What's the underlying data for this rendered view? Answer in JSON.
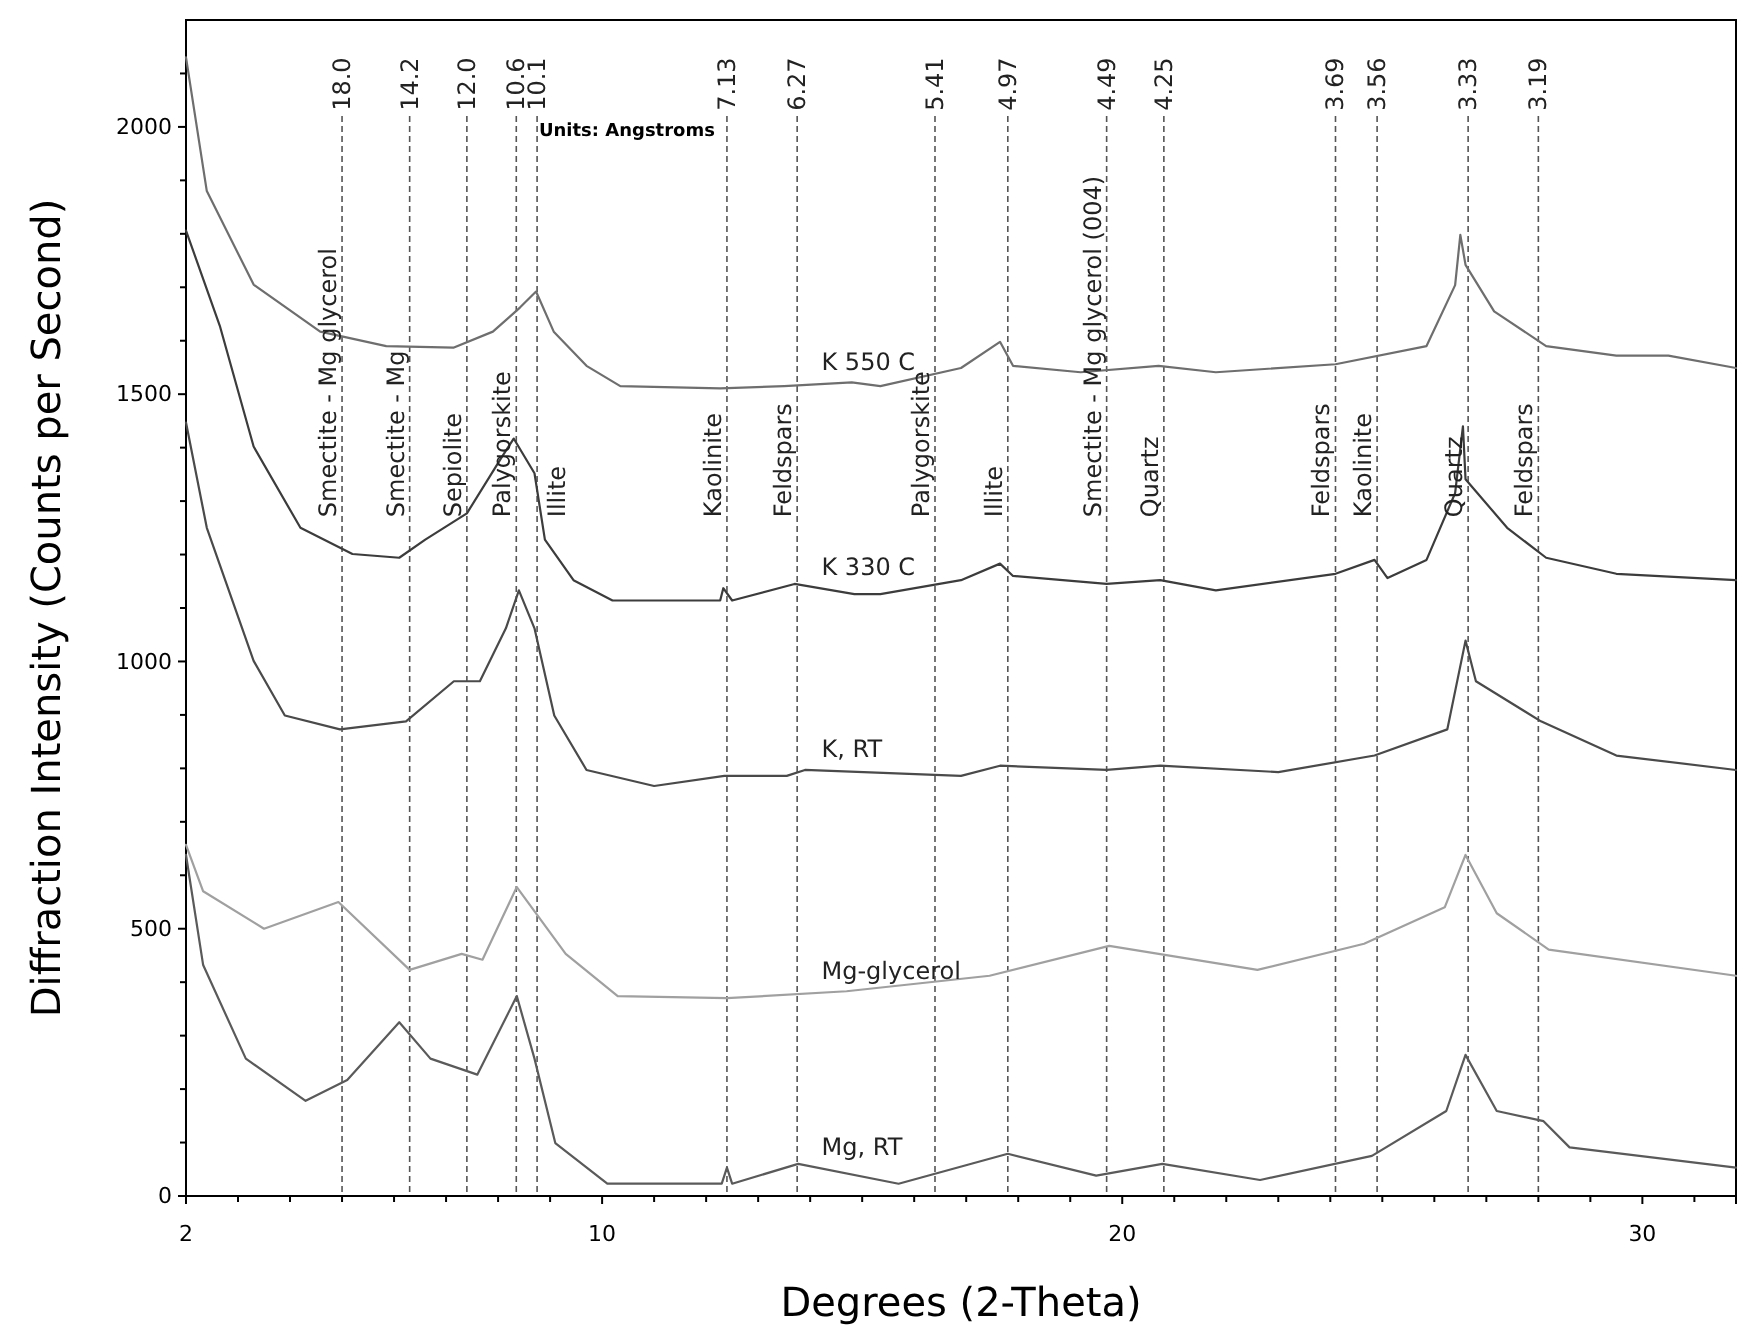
{
  "chart_data": {
    "type": "line",
    "xlabel": "Degrees (2-Theta)",
    "ylabel": "Diffraction Intensity (Counts per Second)",
    "xlim": [
      2,
      31.8
    ],
    "ylim": [
      0,
      2200
    ],
    "xticks": [
      2,
      {
        "value": 3,
        "label": null
      },
      {
        "value": 4,
        "label": null
      },
      {
        "value": 5,
        "label": null
      },
      {
        "value": 6,
        "label": null
      },
      {
        "value": 7,
        "label": null
      },
      {
        "value": 8,
        "label": null
      },
      {
        "value": 9,
        "label": null
      },
      10,
      {
        "value": 11,
        "label": null
      },
      {
        "value": 12,
        "label": null
      },
      {
        "value": 13,
        "label": null
      },
      {
        "value": 14,
        "label": null
      },
      {
        "value": 15,
        "label": null
      },
      {
        "value": 16,
        "label": null
      },
      {
        "value": 17,
        "label": null
      },
      {
        "value": 18,
        "label": null
      },
      {
        "value": 19,
        "label": null
      },
      20,
      {
        "value": 21,
        "label": null
      },
      {
        "value": 22,
        "label": null
      },
      {
        "value": 23,
        "label": null
      },
      {
        "value": 24,
        "label": null
      },
      {
        "value": 25,
        "label": null
      },
      {
        "value": 26,
        "label": null
      },
      {
        "value": 27,
        "label": null
      },
      {
        "value": 28,
        "label": null
      },
      {
        "value": 29,
        "label": null
      },
      30,
      {
        "value": 31,
        "label": null
      }
    ],
    "yticks": [
      0,
      {
        "value": 100,
        "label": null
      },
      {
        "value": 200,
        "label": null
      },
      {
        "value": 300,
        "label": null
      },
      {
        "value": 400,
        "label": null
      },
      500,
      {
        "value": 600,
        "label": null
      },
      {
        "value": 700,
        "label": null
      },
      {
        "value": 800,
        "label": null
      },
      {
        "value": 900,
        "label": null
      },
      1000,
      {
        "value": 1100,
        "label": null
      },
      {
        "value": 1200,
        "label": null
      },
      {
        "value": 1300,
        "label": null
      },
      {
        "value": 1400,
        "label": null
      },
      1500,
      {
        "value": 1600,
        "label": null
      },
      {
        "value": 1700,
        "label": null
      },
      {
        "value": 1800,
        "label": null
      },
      {
        "value": 1900,
        "label": null
      },
      2000,
      {
        "value": 2100,
        "label": null
      }
    ],
    "grid": false,
    "legend": false,
    "marker": "none",
    "line_style": "solid",
    "series": [
      {
        "name": "K 550 C",
        "color": "#6e6e6e",
        "x": [
          2.0,
          2.4,
          3.3,
          4.58,
          5.85,
          7.14,
          7.9,
          8.42,
          8.73,
          9.07,
          9.7,
          10.35,
          12.27,
          13.5,
          14.8,
          15.35,
          16.9,
          17.65,
          17.9,
          19.2,
          20.7,
          21.8,
          24.1,
          25.85,
          26.4,
          26.5,
          26.6,
          27.15,
          28.15,
          29.5,
          30.5,
          31.8
        ],
        "values": [
          2130,
          1880,
          1705,
          1617,
          1590,
          1587,
          1617,
          1662,
          1692,
          1617,
          1553,
          1515,
          1511,
          1515,
          1522,
          1515,
          1549,
          1598,
          1553,
          1541,
          1553,
          1541,
          1556,
          1590,
          1704,
          1798,
          1742,
          1655,
          1590,
          1572,
          1572,
          1549
        ]
      },
      {
        "name": "K 330 C",
        "color": "#3c3c3c",
        "x": [
          2.0,
          2.65,
          3.3,
          4.2,
          5.2,
          6.1,
          6.6,
          7.4,
          8.05,
          8.3,
          8.7,
          8.9,
          9.45,
          10.2,
          12.27,
          12.33,
          12.5,
          13.7,
          14.85,
          15.35,
          16.9,
          17.65,
          17.9,
          19.7,
          20.73,
          21.8,
          24.1,
          24.85,
          25.1,
          25.85,
          26.4,
          26.55,
          26.6,
          27.4,
          28.15,
          29.5,
          31.8
        ],
        "values": [
          1806,
          1628,
          1402,
          1250,
          1201,
          1194,
          1228,
          1277,
          1379,
          1417,
          1352,
          1228,
          1152,
          1114,
          1114,
          1137,
          1114,
          1145,
          1126,
          1126,
          1152,
          1183,
          1160,
          1145,
          1152,
          1133,
          1164,
          1190,
          1156,
          1190,
          1315,
          1440,
          1341,
          1250,
          1194,
          1164,
          1152
        ]
      },
      {
        "name": "K, RT",
        "color": "#4a4a4a",
        "x": [
          2.0,
          2.4,
          3.3,
          3.9,
          4.96,
          6.23,
          7.15,
          7.65,
          8.15,
          8.4,
          8.7,
          9.08,
          9.7,
          11.0,
          12.35,
          13.55,
          13.9,
          16.9,
          17.65,
          19.7,
          20.73,
          23.0,
          24.85,
          26.25,
          26.6,
          26.8,
          28.05,
          29.5,
          31.8
        ],
        "values": [
          1447,
          1250,
          1001,
          899,
          873,
          888,
          963,
          963,
          1062,
          1133,
          1062,
          899,
          797,
          767,
          786,
          786,
          797,
          786,
          805,
          797,
          805,
          793,
          824,
          873,
          1039,
          963,
          888,
          824,
          797
        ]
      },
      {
        "name": "Mg-glycerol",
        "color": "#a0a0a0",
        "x": [
          2.0,
          2.33,
          3.5,
          4.93,
          6.3,
          7.3,
          7.7,
          8.36,
          9.3,
          10.3,
          12.4,
          14.7,
          17.45,
          19.75,
          22.6,
          24.65,
          26.2,
          26.6,
          27.2,
          28.2,
          31.8
        ],
        "values": [
          657,
          570,
          500,
          550,
          423,
          453,
          442,
          578,
          453,
          374,
          370,
          383,
          412,
          468,
          423,
          472,
          540,
          638,
          529,
          461,
          412
        ]
      },
      {
        "name": "Mg, RT",
        "color": "#5a5a5a",
        "x": [
          2.0,
          2.33,
          3.15,
          4.3,
          5.1,
          6.1,
          6.7,
          7.6,
          8.36,
          8.7,
          9.1,
          10.1,
          12.3,
          12.4,
          12.5,
          13.77,
          15.7,
          17.8,
          19.5,
          20.77,
          22.65,
          24.8,
          26.23,
          26.6,
          27.2,
          28.1,
          28.6,
          31.8
        ],
        "values": [
          638,
          432,
          257,
          178,
          217,
          325,
          257,
          227,
          374,
          257,
          99,
          23,
          23,
          53,
          23,
          60,
          23,
          79,
          38,
          60,
          30,
          75,
          159,
          264,
          159,
          140,
          91,
          53
        ]
      }
    ],
    "ref_lines": [
      {
        "axis": "x",
        "value": 5.0
      },
      {
        "axis": "x",
        "value": 6.3
      },
      {
        "axis": "x",
        "value": 7.4
      },
      {
        "axis": "x",
        "value": 8.35
      },
      {
        "axis": "x",
        "value": 8.75
      },
      {
        "axis": "x",
        "value": 12.4
      },
      {
        "axis": "x",
        "value": 13.75
      },
      {
        "axis": "x",
        "value": 16.4
      },
      {
        "axis": "x",
        "value": 17.8
      },
      {
        "axis": "x",
        "value": 19.7
      },
      {
        "axis": "x",
        "value": 20.8
      },
      {
        "axis": "x",
        "value": 24.1
      },
      {
        "axis": "x",
        "value": 24.9
      },
      {
        "axis": "x",
        "value": 26.65
      },
      {
        "axis": "x",
        "value": 28.0
      }
    ],
    "annotations": [
      "Units: Angstroms",
      {
        "text": "18.0",
        "x": 5.0,
        "y": 2030
      },
      {
        "text": "14.2",
        "x": 6.3,
        "y": 2030
      },
      {
        "text": "12.0",
        "x": 7.4,
        "y": 2030
      },
      {
        "text": "10.6",
        "x": 8.35,
        "y": 2030
      },
      {
        "text": "10.1",
        "x": 8.75,
        "y": 2030
      },
      {
        "text": "7.13",
        "x": 12.4,
        "y": 2030
      },
      {
        "text": "6.27",
        "x": 13.75,
        "y": 2030
      },
      {
        "text": "5.41",
        "x": 16.4,
        "y": 2030
      },
      {
        "text": "4.97",
        "x": 17.8,
        "y": 2030
      },
      {
        "text": "4.49",
        "x": 19.7,
        "y": 2030
      },
      {
        "text": "4.25",
        "x": 20.8,
        "y": 2030
      },
      {
        "text": "3.69",
        "x": 24.1,
        "y": 2030
      },
      {
        "text": "3.56",
        "x": 24.9,
        "y": 2030
      },
      {
        "text": "3.33",
        "x": 26.65,
        "y": 2030
      },
      {
        "text": "3.19",
        "x": 28.0,
        "y": 2030
      },
      {
        "text": "Smectite - Mg glycerol",
        "x": 5.0,
        "y": 1270
      },
      {
        "text": "Smectite - Mg",
        "x": 6.3,
        "y": 1270
      },
      {
        "text": "Sepiolite",
        "x": 7.4,
        "y": 1270
      },
      {
        "text": "Palygorskite",
        "x": 8.35,
        "y": 1270
      },
      {
        "text": "Illite",
        "x": 8.75,
        "y": 1270
      },
      {
        "text": "Kaolinite",
        "x": 12.4,
        "y": 1270
      },
      {
        "text": "Feldspars",
        "x": 13.75,
        "y": 1270
      },
      {
        "text": "Palygorskite",
        "x": 16.4,
        "y": 1270
      },
      {
        "text": "Illite",
        "x": 17.8,
        "y": 1270
      },
      {
        "text": "Smectite - Mg glycerol (004)",
        "x": 19.7,
        "y": 1270
      },
      {
        "text": "Quartz",
        "x": 20.8,
        "y": 1270
      },
      {
        "text": "Feldspars",
        "x": 24.1,
        "y": 1270
      },
      {
        "text": "Kaolinite",
        "x": 24.9,
        "y": 1270
      },
      {
        "text": "Quartz",
        "x": 26.65,
        "y": 1270
      },
      {
        "text": "Feldspars",
        "x": 28.0,
        "y": 1270
      }
    ]
  }
}
